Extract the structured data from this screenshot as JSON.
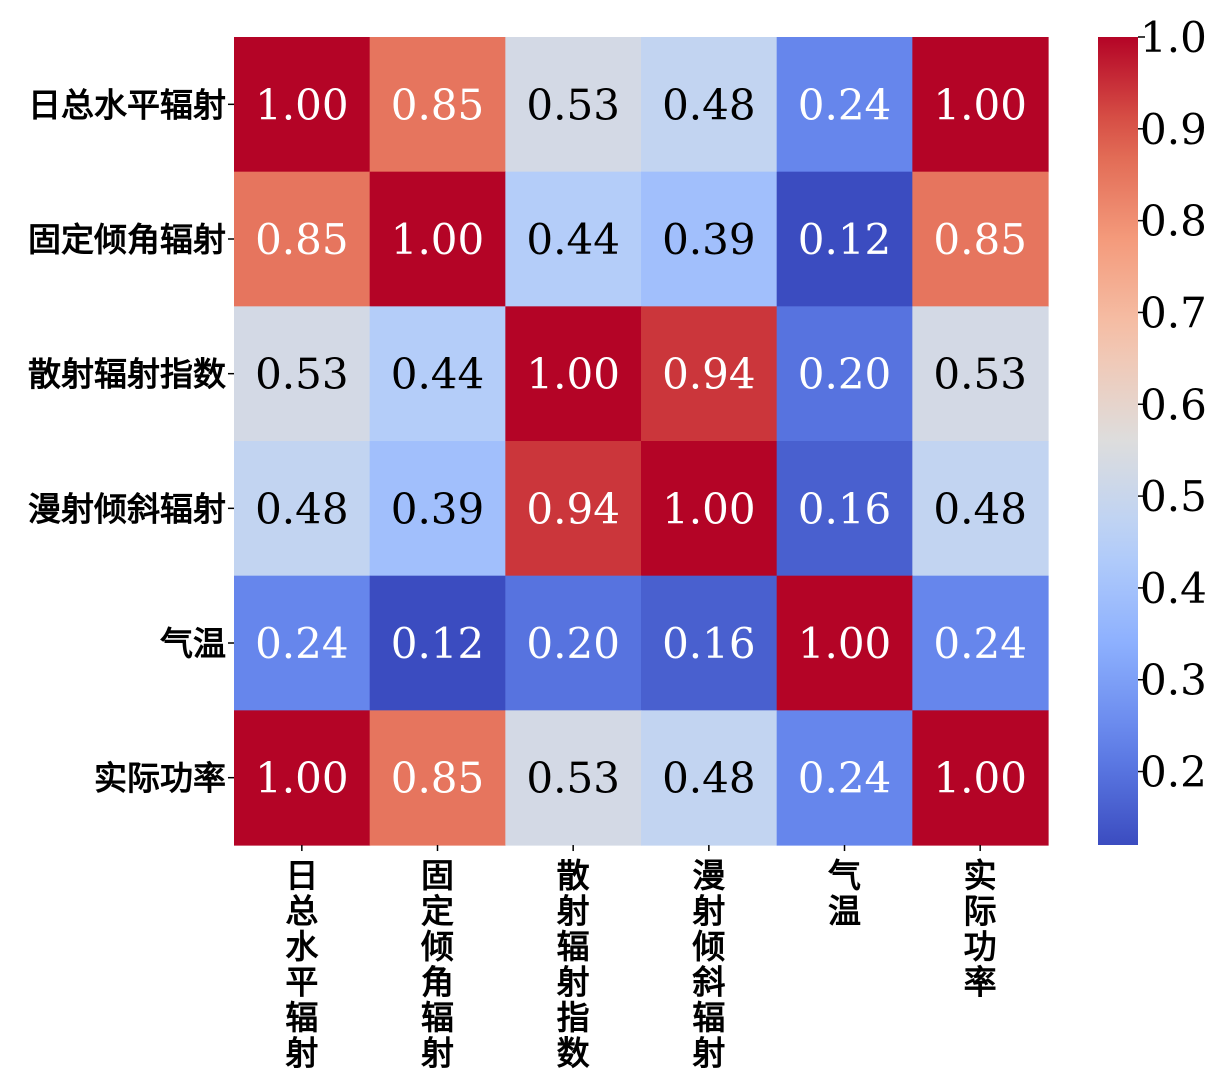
{
  "chart_data": {
    "type": "heatmap",
    "labels": [
      "日总水平辐射",
      "固定倾角辐射",
      "散射辐射指数",
      "漫射倾斜辐射",
      "气温",
      "实际功率"
    ],
    "values": [
      [
        1.0,
        0.85,
        0.53,
        0.48,
        0.24,
        1.0
      ],
      [
        0.85,
        1.0,
        0.44,
        0.39,
        0.12,
        0.85
      ],
      [
        0.53,
        0.44,
        1.0,
        0.94,
        0.2,
        0.53
      ],
      [
        0.48,
        0.39,
        0.94,
        1.0,
        0.16,
        0.48
      ],
      [
        0.24,
        0.12,
        0.2,
        0.16,
        1.0,
        0.24
      ],
      [
        1.0,
        0.85,
        0.53,
        0.48,
        0.24,
        1.0
      ]
    ],
    "colormap": "coolwarm",
    "vmin": 0.12,
    "vmax": 1.0,
    "colorbar_ticks": [
      "0.2",
      "0.3",
      "0.4",
      "0.5",
      "0.6",
      "0.7",
      "0.8",
      "0.9",
      "1.0"
    ],
    "annotation_format": "0.00"
  }
}
